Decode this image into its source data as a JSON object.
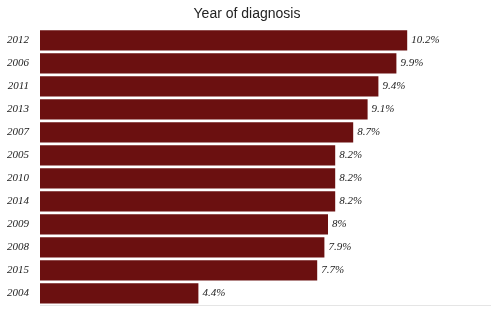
{
  "chart_data": {
    "type": "bar",
    "orientation": "horizontal",
    "title": "Year of diagnosis",
    "categories": [
      "2012",
      "2006",
      "2011",
      "2013",
      "2007",
      "2005",
      "2010",
      "2014",
      "2009",
      "2008",
      "2015",
      "2004"
    ],
    "values": [
      10.2,
      9.9,
      9.4,
      9.1,
      8.7,
      8.2,
      8.2,
      8.2,
      8.0,
      7.9,
      7.7,
      4.4
    ],
    "value_labels": [
      "10.2%",
      "9.9%",
      "9.4%",
      "9.1%",
      "8.7%",
      "8.2%",
      "8.2%",
      "8.2%",
      "8%",
      "7.9%",
      "7.7%",
      "4.4%"
    ],
    "data_labels": true,
    "color": "#6B1010",
    "xlim": [
      0,
      12.5
    ],
    "tick_labels": "y",
    "grid": false
  }
}
